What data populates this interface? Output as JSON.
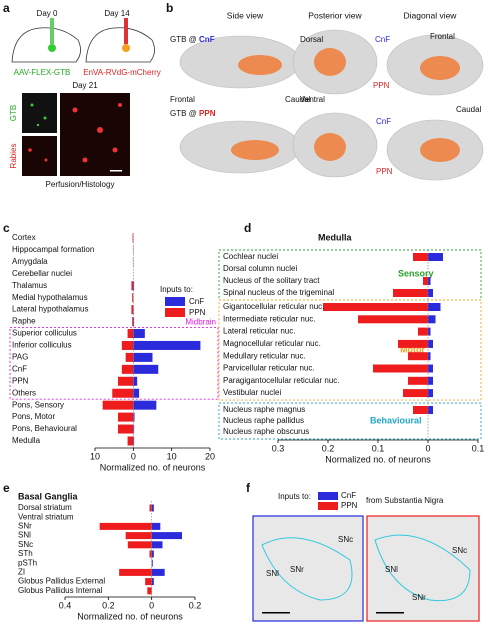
{
  "figure": {
    "panels": [
      "a",
      "b",
      "c",
      "d",
      "e",
      "f"
    ],
    "a": {
      "day0": "Day 0",
      "day14": "Day 14",
      "virus1": "AAV-FLEX-GTB",
      "virus2": "EnVA-RVdG-mCherry",
      "day21": "Day 21",
      "gtb": "GTB",
      "rabies": "Rabies",
      "caption": "Perfusion/Histology"
    },
    "b": {
      "views": [
        "Side view",
        "Posterior view",
        "Diagonal view"
      ],
      "row1": {
        "prefix": "GTB @",
        "target": "CnF",
        "dorsal": "Dorsal",
        "cnf": "CnF",
        "ppn": "PPN",
        "frontal_diag": "Frontal",
        "frontal": "Frontal",
        "caudal": "Caudal",
        "ventral": "Ventral",
        "caudal_diag": "Caudal"
      },
      "row2": {
        "prefix": "GTB @",
        "target": "PPN",
        "cnf": "CnF",
        "ppn": "PPN"
      }
    },
    "f": {
      "inputs": "Inputs to:",
      "cnf": "CnF",
      "ppn": "PPN",
      "from": "from Substantia Nigra",
      "left": [
        "SNc",
        "SNl",
        "SNr"
      ],
      "right": [
        "SNc",
        "SNl",
        "SNr"
      ]
    }
  },
  "chart_data": [
    {
      "type": "bar",
      "orientation": "horizontal",
      "x_label": "Normalized no. of neurons",
      "legend_title": "Inputs to:",
      "annotation": "Midbrain",
      "annotation_color": "#e020e0",
      "categories": [
        "Cortex",
        "Hippocampal formation",
        "Amygdala",
        "Cerebellar nuclei",
        "Thalamus",
        "Medial hypothalamus",
        "Lateral hypothalamus",
        "Raphe",
        "Superior colliculus",
        "Inferior colliculus",
        "PAG",
        "CnF",
        "PPN",
        "Others",
        "Pons, Sensory",
        "Pons, Motor",
        "Pons, Behavioural",
        "Medulla"
      ],
      "series": [
        {
          "name": "CnF",
          "color": "#2b2bdc",
          "values": [
            0,
            0,
            0,
            0,
            0.2,
            0,
            0.1,
            0.2,
            3,
            17.5,
            5,
            6.5,
            1,
            1.5,
            6,
            0.3,
            0.2,
            0.2
          ]
        },
        {
          "name": "PPN",
          "color": "#ee1c1c",
          "values": [
            -0.2,
            -0.1,
            -0.1,
            0,
            -0.5,
            -0.3,
            -0.5,
            -0.3,
            -1.5,
            -3,
            -2,
            -3,
            -4,
            -5.5,
            -8,
            -4,
            -4,
            -1.5
          ]
        }
      ],
      "xlim": [
        -10,
        20
      ],
      "xticks": [
        {
          "value": -10,
          "label": "10"
        },
        0,
        10,
        20
      ]
    },
    {
      "type": "bar",
      "orientation": "horizontal",
      "title": "Medulla",
      "x_label": "Normalized no. of neurons",
      "groups": [
        {
          "name": "Sensory",
          "color": "#2ca02c"
        },
        {
          "name": "Motor",
          "color": "#f0a020"
        },
        {
          "name": "Behavioural",
          "color": "#20a8c8"
        }
      ],
      "categories": [
        "Cochlear nuclei",
        "Dorsal column nuclei",
        "Nucleus of the solitary tract",
        "Spinal nucleus of the trigeminal",
        "Gigantocellular reticular nuc.",
        "Intermediate reticular nuc.",
        "Lateral reticular nuc.",
        "Magnocellular reticular nuc.",
        "Medullary reticular nuc.",
        "Parvicellular reticular nuc.",
        "Paragigantocellular reticular nuc.",
        "Vestibular nuclei",
        "Nucleus raphe magnus",
        "Nucleus raphe pallidus",
        "Nucleus raphe obscurus"
      ],
      "series": [
        {
          "name": "CnF",
          "color": "#2b2bdc",
          "values": [
            0.03,
            0,
            0.005,
            0.01,
            0.025,
            0.015,
            0.005,
            0.01,
            0.005,
            0.01,
            0.01,
            0.01,
            0.01,
            0,
            0
          ]
        },
        {
          "name": "PPN",
          "color": "#ee1c1c",
          "values": [
            -0.03,
            0,
            -0.01,
            -0.07,
            -0.21,
            -0.14,
            -0.02,
            -0.06,
            -0.04,
            -0.11,
            -0.04,
            -0.05,
            -0.03,
            0,
            0
          ]
        }
      ],
      "xlim": [
        -0.3,
        0.1
      ],
      "xticks": [
        {
          "value": -0.3,
          "label": "0.3"
        },
        {
          "value": -0.2,
          "label": "0.2"
        },
        {
          "value": -0.1,
          "label": "0.1"
        },
        0,
        0.1
      ]
    },
    {
      "type": "bar",
      "orientation": "horizontal",
      "title": "Basal Ganglia",
      "x_label": "Normalized no. of neurons",
      "categories": [
        "Dorsal striatum",
        "Ventral striatum",
        "SNr",
        "SNl",
        "SNc",
        "STh",
        "pSTh",
        "ZI",
        "Globus Pallidus External",
        "Globus Pallidus Internal"
      ],
      "series": [
        {
          "name": "CnF",
          "color": "#2b2bdc",
          "values": [
            0.01,
            0,
            0.04,
            0.14,
            0.05,
            0.01,
            0.005,
            0.06,
            0.01,
            0
          ]
        },
        {
          "name": "PPN",
          "color": "#ee1c1c",
          "values": [
            -0.01,
            0,
            -0.24,
            -0.12,
            -0.11,
            -0.01,
            0,
            -0.15,
            -0.03,
            -0.02
          ]
        }
      ],
      "xlim": [
        -0.4,
        0.2
      ],
      "xticks": [
        {
          "value": -0.4,
          "label": "0.4"
        },
        {
          "value": -0.2,
          "label": "0.2"
        },
        0,
        0.2
      ]
    }
  ]
}
